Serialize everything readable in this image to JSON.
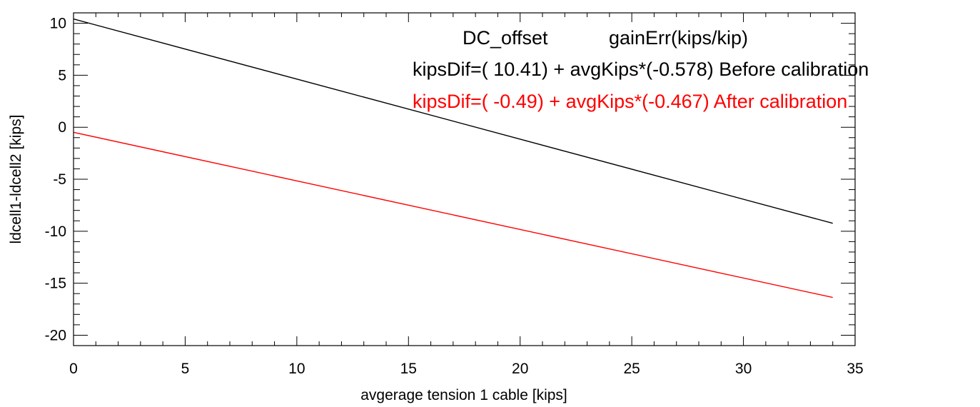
{
  "chart_data": {
    "type": "line",
    "title": "",
    "xlabel": "avgerage tension 1 cable [kips]",
    "ylabel": "ldcell1-ldcell2 [kips]",
    "xlim": [
      0,
      35
    ],
    "ylim": [
      -21,
      11
    ],
    "x_ticks": [
      0,
      5,
      10,
      15,
      20,
      25,
      30,
      35
    ],
    "y_ticks": [
      -20,
      -15,
      -10,
      -5,
      0,
      5,
      10
    ],
    "x_tick_labels": [
      "0",
      "5",
      "10",
      "15",
      "20",
      "25",
      "30",
      "35"
    ],
    "y_tick_labels": [
      "-20",
      "-15",
      "-10",
      "-5",
      "0",
      "5",
      "10"
    ],
    "grid": false,
    "series": [
      {
        "color": "#000000",
        "x": [
          0,
          34
        ],
        "y": [
          10.41,
          -9.24
        ]
      },
      {
        "color": "#ff0000",
        "x": [
          0,
          34
        ],
        "y": [
          -0.49,
          -16.37
        ]
      }
    ],
    "annotations": {
      "header_dc": "DC_offset",
      "header_gain": "gainErr(kips/kip)",
      "line1": "kipsDif=( 10.41) + avgKips*(-0.578) Before calibration",
      "line2": "kipsDif=( -0.49) + avgKips*(-0.467) After calibration",
      "line1_color": "#000000",
      "line2_color": "#ff0000"
    }
  }
}
